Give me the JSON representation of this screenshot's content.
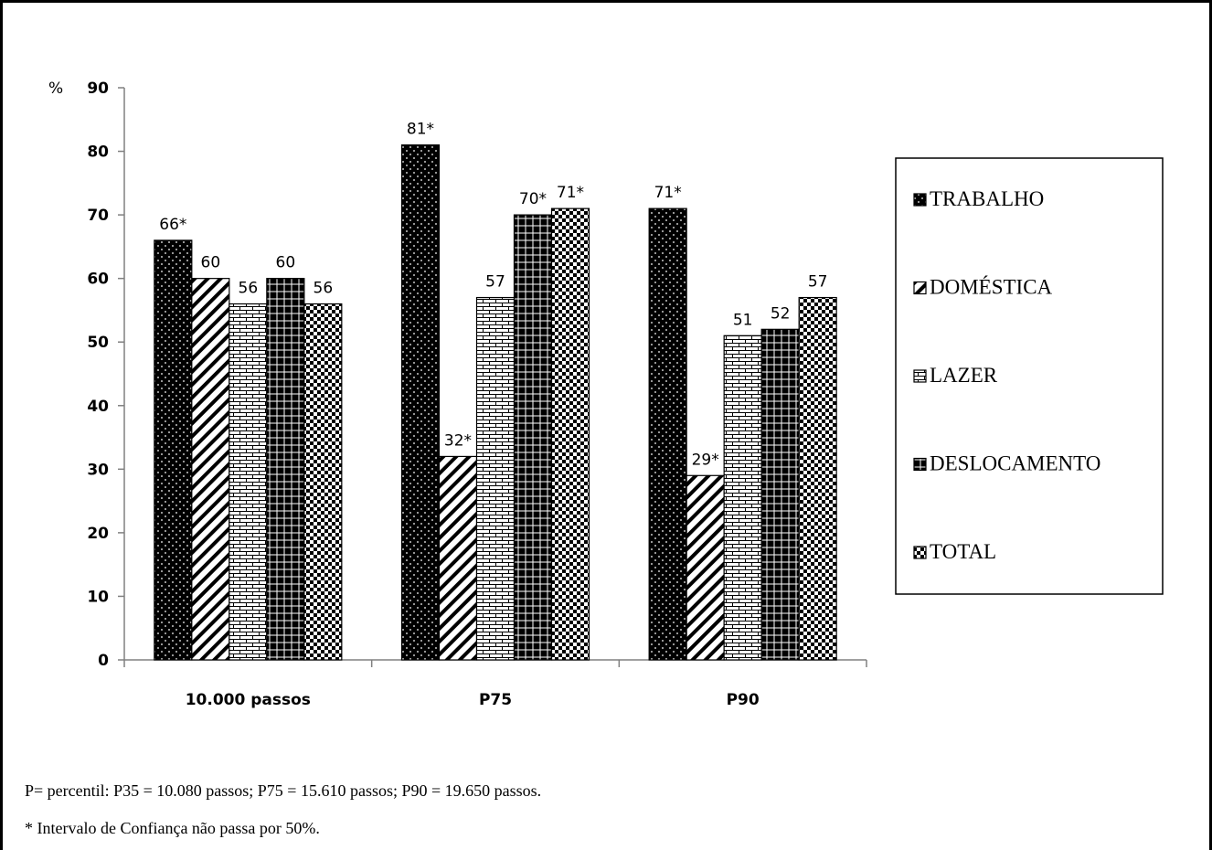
{
  "chart_data": {
    "type": "bar",
    "ylabel": "%",
    "ylim": [
      0,
      90
    ],
    "yticks": [
      "0",
      "10",
      "20",
      "30",
      "40",
      "50",
      "60",
      "70",
      "80",
      "90"
    ],
    "categories": [
      "10.000 passos",
      "P75",
      "P90"
    ],
    "legend_position": "right",
    "series": [
      {
        "name": "TRABALHO",
        "pattern": "dots",
        "values": [
          66,
          81,
          71
        ],
        "labels": [
          "66*",
          "81*",
          "71*"
        ]
      },
      {
        "name": "DOMÉSTICA",
        "pattern": "diagonal",
        "values": [
          60,
          32,
          29
        ],
        "labels": [
          "60",
          "32*",
          "29*"
        ]
      },
      {
        "name": "LAZER",
        "pattern": "brick",
        "values": [
          56,
          57,
          51
        ],
        "labels": [
          "56",
          "57",
          "51"
        ]
      },
      {
        "name": "DESLOCAMENTO",
        "pattern": "grid",
        "values": [
          60,
          70,
          52
        ],
        "labels": [
          "60",
          "70*",
          "52"
        ]
      },
      {
        "name": "TOTAL",
        "pattern": "checker",
        "values": [
          56,
          71,
          57
        ],
        "labels": [
          "56",
          "71*",
          "57"
        ]
      }
    ]
  },
  "notes": {
    "line1": "P= percentil: P35 = 10.080 passos; P75 = 15.610 passos; P90 = 19.650 passos.",
    "line2": "* Intervalo de Confiança não passa por 50%."
  },
  "colors": {
    "bar_fill": "#000000",
    "pattern_white": "#ffffff",
    "axis": "#808080"
  }
}
